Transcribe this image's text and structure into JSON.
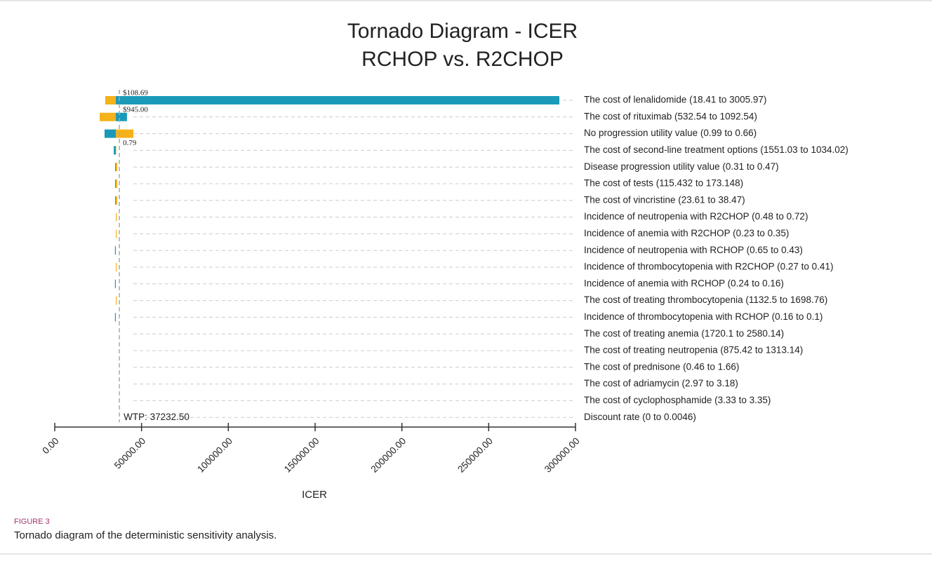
{
  "chart_data": {
    "type": "tornado",
    "title": [
      "Tornado Diagram - ICER",
      "RCHOP vs. R2CHOP"
    ],
    "x_label": "ICER",
    "figure_label": "FIGURE 3",
    "caption": "Tornado diagram of the deterministic sensitivity analysis.",
    "categories": [
      "The cost of lenalidomide (18.41 to 3005.97)",
      "The cost of rituximab (532.54 to 1092.54)",
      "No progression utility value (0.99 to 0.66)",
      "The cost of second-line treatment options (1551.03 to 1034.02)",
      "Disease progression utility value (0.31 to 0.47)",
      "The cost of tests (115.432 to 173.148)",
      "The cost of vincristine (23.61 to 38.47)",
      "Incidence of neutropenia with R2CHOP (0.48 to 0.72)",
      "Incidence of anemia with R2CHOP (0.23 to 0.35)",
      "Incidence of neutropenia with RCHOP (0.65 to 0.43)",
      "Incidence of thrombocytopenia with R2CHOP (0.27 to 0.41)",
      "Incidence of anemia with RCHOP (0.24 to 0.16)",
      "The cost of treating thrombocytopenia (1132.5 to 1698.76)",
      "Incidence of thrombocytopenia with RCHOP (0.16 to 0.1)",
      "The cost of treating anemia (1720.1 to 2580.14)",
      "The cost of treating neutropenia (875.42 to 1313.14)",
      "The cost of prednisone (0.46 to 1.66)",
      "The cost of adriamycin (2.97 to 3.18)",
      "The cost of cyclophosphamide (3.33 to 3.35)",
      "Discount rate (0 to 0.0046)"
    ],
    "base_value": 35200,
    "series": [
      {
        "color": "#f5b21b",
        "values": [
          29100,
          25900,
          45300,
          35400,
          36000,
          36000,
          36000,
          35700,
          35700,
          35200,
          35700,
          35200,
          35700,
          35200,
          35200,
          35200,
          35200,
          35200,
          35200,
          35200
        ]
      },
      {
        "color": "#1a9ab8",
        "values": [
          290700,
          41600,
          28700,
          34000,
          34800,
          34800,
          34800,
          35200,
          35200,
          34700,
          35200,
          34700,
          35200,
          34700,
          35200,
          35200,
          35200,
          35200,
          35200,
          35200
        ]
      }
    ],
    "annotations": [
      "$108.69",
      "$945.00",
      null,
      "0.79",
      null,
      null,
      null,
      null,
      null,
      null,
      null,
      null,
      null,
      null,
      null,
      null,
      null,
      null,
      null,
      null
    ],
    "wtp": {
      "value": 37232.5,
      "label": "WTP: 37232.50"
    },
    "xlim": [
      0,
      300000
    ],
    "xticks": [
      {
        "value": 0,
        "label": "0.00"
      },
      {
        "value": 50000,
        "label": "50000.00"
      },
      {
        "value": 100000,
        "label": "100000.00"
      },
      {
        "value": 150000,
        "label": "150000.00"
      },
      {
        "value": 200000,
        "label": "200000.00"
      },
      {
        "value": 250000,
        "label": "250000.00"
      },
      {
        "value": 300000,
        "label": "300000.00"
      }
    ]
  }
}
